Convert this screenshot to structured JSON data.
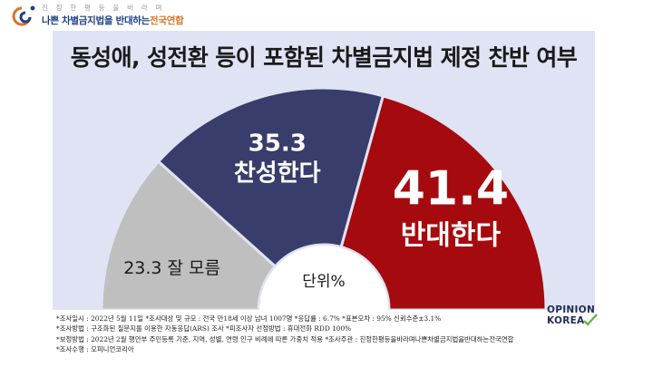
{
  "header": {
    "logo_top": "진 정 한 평 등 을 바 라 며",
    "logo_main": "나쁜 차별금지법을 반대하는",
    "logo_accent": "전국연합"
  },
  "colors": {
    "favor": "#383d6b",
    "oppose": "#a50a0f",
    "unsure": "#bfbfbf",
    "panel": "#dfe3f3"
  },
  "chart_data": {
    "type": "pie",
    "subtype": "half-donut",
    "title": "동성애, 성전환 등이 포함된 차별금지법 제정 찬반 여부",
    "unit_label": "단위%",
    "slices": [
      {
        "label": "잘 모름",
        "value": 23.3,
        "value_text": "23.3"
      },
      {
        "label": "찬성한다",
        "value": 35.3,
        "value_text": "35.3"
      },
      {
        "label": "반대한다",
        "value": 41.4,
        "value_text": "41.4"
      }
    ]
  },
  "notes": [
    "*조사일시 : 2022년 5월 11일  *조사대상 및 규모 : 전국 만18세 이상 남녀 1007명  *응답률 : 6.7%   *표본오차 : 95% 신뢰수준±3.1%",
    "*조사방법 : 구조화된 질문지를 이용한 자동응답(ARS) 조사  *피조사자 선정방법 : 휴대전화 RDD 100%",
    "*보정방법 : 2022년 2월 행안부 주민등록 기준, 지역, 성별, 연령 인구 비례에 따른 가중치 적용  *조사주관 : 진정한평등을바라며나쁜차별금지법을반대하는전국연합",
    "*조사수행 : 오피니언코리아"
  ],
  "brand": {
    "line1": "OPINION",
    "line2": "KOREA"
  }
}
